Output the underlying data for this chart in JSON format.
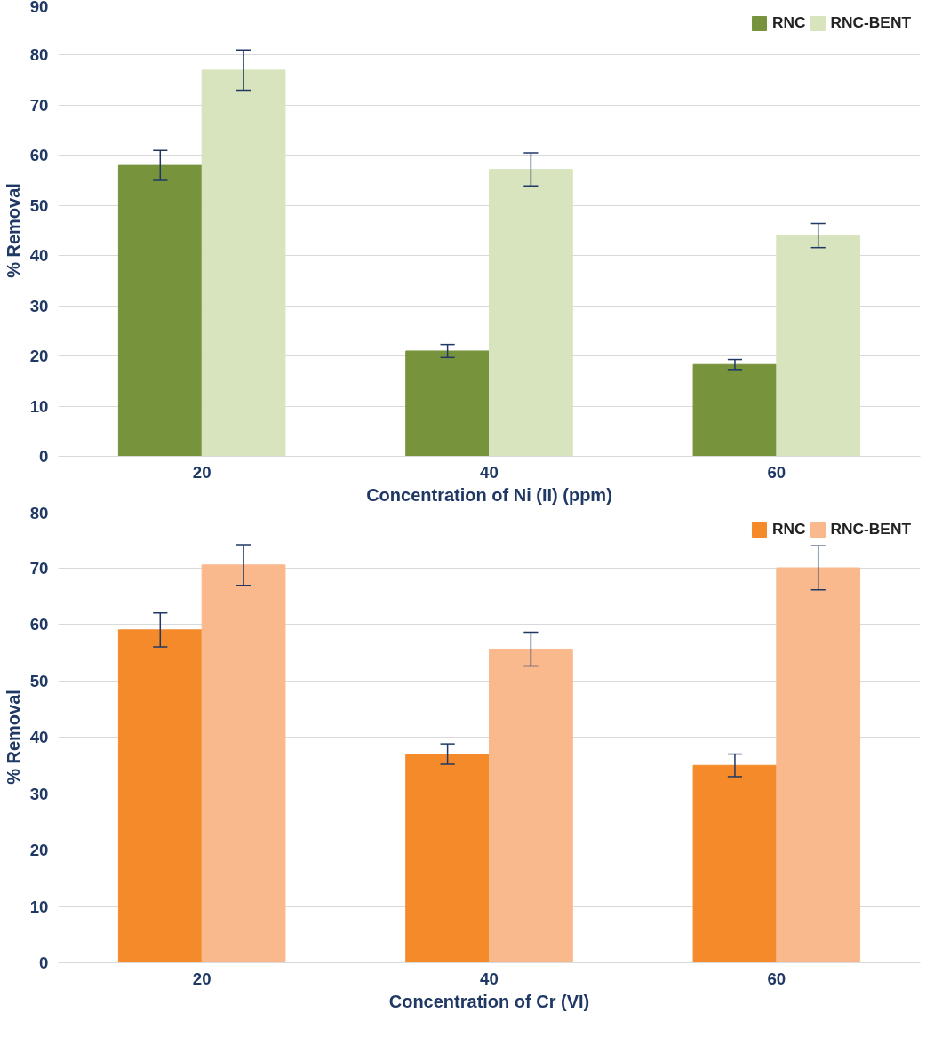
{
  "chart_data": [
    {
      "type": "bar",
      "xlabel": "Concentration of Ni (II) (ppm)",
      "ylabel": "% Removal",
      "categories": [
        "20",
        "40",
        "60"
      ],
      "series": [
        {
          "name": "RNC",
          "color": "#77933c",
          "values": [
            58,
            21,
            18.3
          ],
          "errors": [
            3,
            1.3,
            1
          ]
        },
        {
          "name": "RNC-BENT",
          "color": "#d7e4bd",
          "values": [
            77,
            57.2,
            44
          ],
          "errors": [
            4,
            3.3,
            2.4
          ]
        }
      ],
      "ylim": [
        0,
        90
      ],
      "yticks": [
        0,
        10,
        20,
        30,
        40,
        50,
        60,
        70,
        80,
        90
      ],
      "grid": "y",
      "legend": "top right"
    },
    {
      "type": "bar",
      "xlabel": "Concentration of Cr (VI)",
      "ylabel": "% Removal",
      "categories": [
        "20",
        "40",
        "60"
      ],
      "series": [
        {
          "name": "RNC",
          "color": "#f58a2a",
          "values": [
            59,
            37,
            35
          ],
          "errors": [
            3,
            1.8,
            2
          ]
        },
        {
          "name": "RNC-BENT",
          "color": "#f9b98c",
          "values": [
            70.5,
            55.6,
            70
          ],
          "errors": [
            3.6,
            3,
            3.9
          ]
        }
      ],
      "ylim": [
        0,
        80
      ],
      "yticks": [
        0,
        10,
        20,
        30,
        40,
        50,
        60,
        70,
        80
      ],
      "grid": "y",
      "legend": "top right"
    }
  ]
}
